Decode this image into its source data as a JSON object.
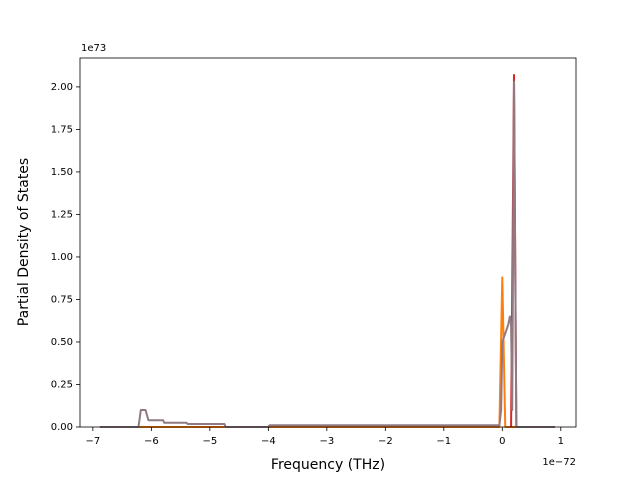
{
  "chart_data": {
    "type": "line",
    "xlabel": "Frequency (THz)",
    "ylabel": "Partial Density of States",
    "x_offset_label": "1e−72",
    "y_offset_label": "1e73",
    "xlim": [
      -7.22,
      1.26
    ],
    "ylim": [
      0,
      2.17
    ],
    "xticks": [
      {
        "value": -7,
        "label": "−7"
      },
      {
        "value": -6,
        "label": "−6"
      },
      {
        "value": -5,
        "label": "−5"
      },
      {
        "value": -4,
        "label": "−4"
      },
      {
        "value": -3,
        "label": "−3"
      },
      {
        "value": -2,
        "label": "−2"
      },
      {
        "value": -1,
        "label": "−1"
      },
      0,
      1
    ],
    "yticks": [
      {
        "value": 0,
        "label": "0.00"
      },
      {
        "value": 0.25,
        "label": "0.25"
      },
      {
        "value": 0.5,
        "label": "0.50"
      },
      {
        "value": 0.75,
        "label": "0.75"
      },
      {
        "value": 1,
        "label": "1.00"
      },
      {
        "value": 1.25,
        "label": "1.25"
      },
      {
        "value": 1.5,
        "label": "1.50"
      },
      {
        "value": 1.75,
        "label": "1.75"
      },
      {
        "value": 2,
        "label": "2.00"
      }
    ],
    "series": [
      {
        "color": "#ff7f0e",
        "x": [
          -6.88,
          -0.05,
          0.0,
          0.05,
          0.9
        ],
        "values": [
          0,
          0,
          0.88,
          0,
          0
        ]
      },
      {
        "color": "#d62728",
        "x": [
          0.15,
          0.2,
          0.24
        ],
        "values": [
          0,
          2.07,
          0
        ]
      },
      {
        "color": "#8f7a84",
        "x": [
          -6.88,
          -6.22,
          -6.18,
          -6.1,
          -6.05,
          -5.8,
          -5.78,
          -5.4,
          -5.38,
          -4.75,
          -4.73,
          -4.0,
          -3.98,
          -0.05,
          -0.02,
          0.0,
          0.1,
          0.13,
          0.15,
          0.17,
          0.2,
          0.22,
          0.24,
          0.9
        ],
        "values": [
          0,
          0,
          0.1,
          0.1,
          0.04,
          0.04,
          0.025,
          0.025,
          0.018,
          0.018,
          0,
          0,
          0.01,
          0.01,
          0.1,
          0.5,
          0.6,
          0.65,
          0.6,
          0.1,
          2.03,
          1.0,
          0,
          0
        ]
      }
    ]
  }
}
